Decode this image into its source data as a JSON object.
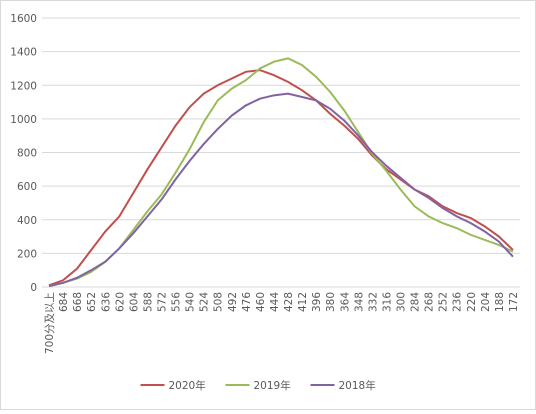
{
  "chart_data": {
    "type": "line",
    "categories": [
      "700分及以上",
      "684",
      "668",
      "652",
      "636",
      "620",
      "604",
      "588",
      "572",
      "556",
      "540",
      "524",
      "508",
      "492",
      "476",
      "460",
      "444",
      "428",
      "412",
      "396",
      "380",
      "364",
      "348",
      "332",
      "316",
      "300",
      "284",
      "268",
      "252",
      "236",
      "220",
      "204",
      "188",
      "172"
    ],
    "series": [
      {
        "name": "2020年",
        "color": "#c0504d",
        "values": [
          10,
          40,
          110,
          220,
          330,
          420,
          560,
          700,
          830,
          960,
          1070,
          1150,
          1200,
          1240,
          1280,
          1290,
          1260,
          1220,
          1170,
          1110,
          1030,
          960,
          880,
          780,
          700,
          640,
          580,
          540,
          480,
          440,
          410,
          360,
          300,
          220
        ]
      },
      {
        "name": "2019年",
        "color": "#9bbb59",
        "values": [
          5,
          25,
          50,
          90,
          150,
          230,
          340,
          450,
          550,
          680,
          820,
          980,
          1110,
          1180,
          1230,
          1300,
          1340,
          1360,
          1320,
          1250,
          1160,
          1050,
          920,
          790,
          690,
          580,
          480,
          420,
          380,
          350,
          310,
          280,
          250,
          210
        ]
      },
      {
        "name": "2018年",
        "color": "#8064a2",
        "values": [
          5,
          25,
          55,
          100,
          150,
          230,
          320,
          420,
          520,
          640,
          750,
          850,
          940,
          1020,
          1080,
          1120,
          1140,
          1150,
          1130,
          1110,
          1060,
          990,
          900,
          800,
          720,
          650,
          580,
          530,
          470,
          420,
          380,
          330,
          270,
          180
        ]
      }
    ],
    "ylim": [
      0,
      1600
    ],
    "yticks": [
      0,
      200,
      400,
      600,
      800,
      1000,
      1200,
      1400,
      1600
    ],
    "grid": true,
    "legend": "bottom"
  }
}
